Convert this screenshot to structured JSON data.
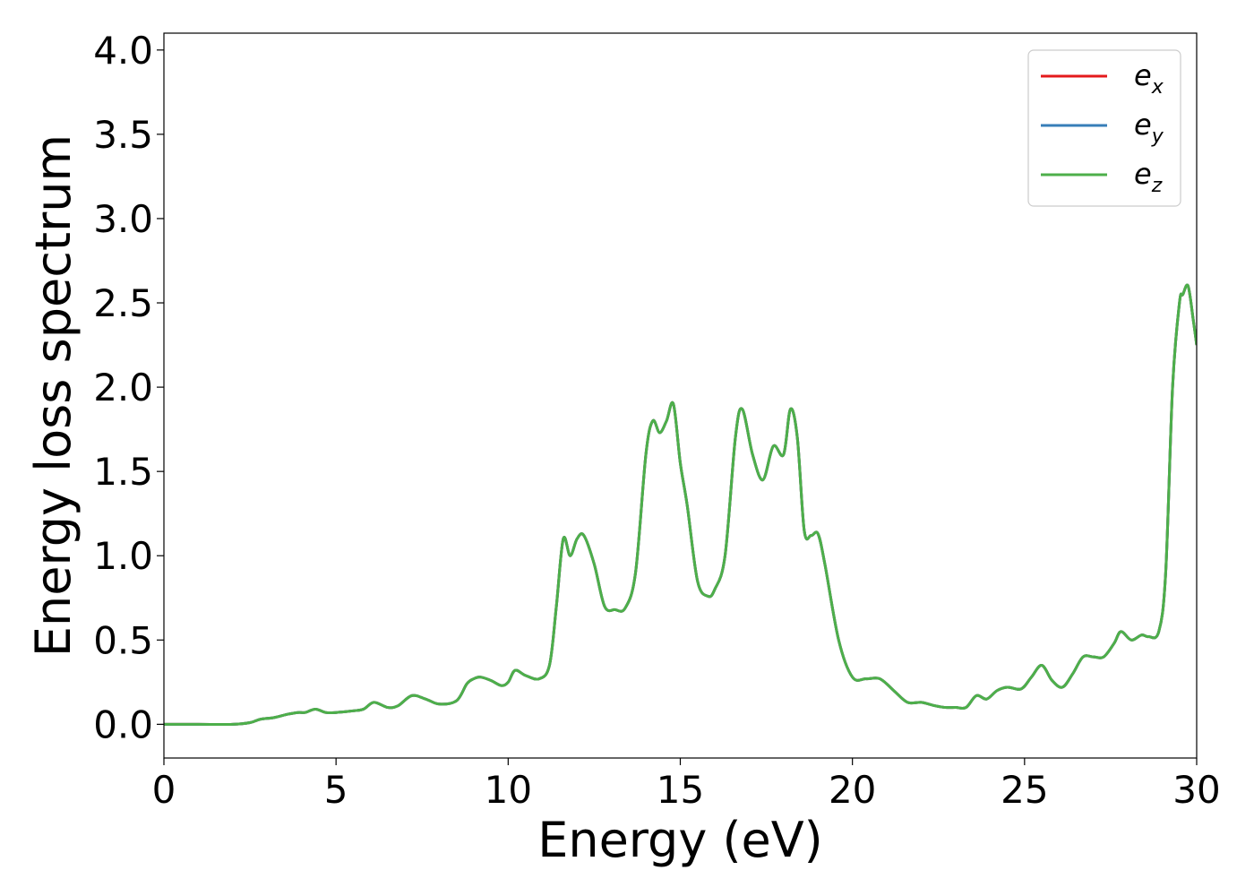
{
  "chart_data": {
    "type": "line",
    "xlabel": "Energy (eV)",
    "ylabel": "Energy loss spectrum",
    "xlim": [
      0,
      30
    ],
    "ylim": [
      -0.2,
      4.1
    ],
    "x_ticks": [
      0,
      5,
      10,
      15,
      20,
      25,
      30
    ],
    "x_tick_labels": [
      "0",
      "5",
      "10",
      "15",
      "20",
      "25",
      "30"
    ],
    "y_ticks": [
      0.0,
      0.5,
      1.0,
      1.5,
      2.0,
      2.5,
      3.0,
      3.5,
      4.0
    ],
    "y_tick_labels": [
      "0.0",
      "0.5",
      "1.0",
      "1.5",
      "2.0",
      "2.5",
      "3.0",
      "3.5",
      "4.0"
    ],
    "grid": false,
    "legend_position": "top-right",
    "x": [
      0,
      1,
      2,
      2.5,
      2.8,
      3.2,
      3.6,
      3.9,
      4.1,
      4.4,
      4.7,
      5.0,
      5.5,
      5.8,
      6.1,
      6.5,
      6.8,
      7.2,
      7.6,
      8.0,
      8.5,
      8.8,
      9.0,
      9.2,
      9.5,
      9.8,
      10.0,
      10.2,
      10.5,
      10.9,
      11.2,
      11.4,
      11.6,
      11.8,
      12.0,
      12.2,
      12.5,
      12.8,
      13.1,
      13.4,
      13.7,
      14.0,
      14.2,
      14.4,
      14.6,
      14.8,
      15.0,
      15.2,
      15.5,
      15.8,
      16.0,
      16.3,
      16.6,
      16.8,
      17.1,
      17.4,
      17.7,
      18.0,
      18.2,
      18.4,
      18.6,
      18.8,
      19.0,
      19.2,
      19.6,
      20.0,
      20.4,
      20.8,
      21.2,
      21.6,
      22.0,
      22.4,
      22.7,
      23.0,
      23.3,
      23.6,
      23.9,
      24.2,
      24.5,
      24.9,
      25.2,
      25.5,
      25.8,
      26.1,
      26.4,
      26.7,
      27.0,
      27.3,
      27.6,
      27.8,
      28.1,
      28.4,
      28.6,
      28.9,
      29.1,
      29.3,
      29.5,
      29.6,
      29.75,
      29.9,
      30.0
    ],
    "series": [
      {
        "name": "e_x",
        "symbol": "e",
        "subscript": "x",
        "color": "#e41a1c"
      },
      {
        "name": "e_y",
        "symbol": "e",
        "subscript": "y",
        "color": "#377eb8"
      },
      {
        "name": "e_z",
        "symbol": "e",
        "subscript": "z",
        "color": "#4daf4a"
      }
    ],
    "y": [
      0.0,
      0.0,
      0.0,
      0.01,
      0.03,
      0.04,
      0.06,
      0.07,
      0.07,
      0.09,
      0.07,
      0.07,
      0.08,
      0.09,
      0.13,
      0.1,
      0.11,
      0.17,
      0.15,
      0.12,
      0.14,
      0.24,
      0.27,
      0.28,
      0.26,
      0.23,
      0.25,
      0.32,
      0.29,
      0.27,
      0.35,
      0.7,
      1.1,
      1.0,
      1.1,
      1.12,
      0.95,
      0.7,
      0.68,
      0.69,
      0.9,
      1.6,
      1.8,
      1.73,
      1.8,
      1.9,
      1.55,
      1.3,
      0.85,
      0.76,
      0.8,
      1.0,
      1.7,
      1.87,
      1.6,
      1.45,
      1.65,
      1.6,
      1.87,
      1.7,
      1.15,
      1.12,
      1.13,
      0.95,
      0.5,
      0.28,
      0.27,
      0.27,
      0.2,
      0.13,
      0.13,
      0.11,
      0.1,
      0.1,
      0.1,
      0.17,
      0.15,
      0.2,
      0.22,
      0.21,
      0.28,
      0.35,
      0.26,
      0.22,
      0.3,
      0.4,
      0.4,
      0.4,
      0.48,
      0.55,
      0.5,
      0.53,
      0.52,
      0.55,
      0.9,
      2.0,
      2.5,
      2.55,
      2.6,
      2.4,
      2.25
    ]
  }
}
